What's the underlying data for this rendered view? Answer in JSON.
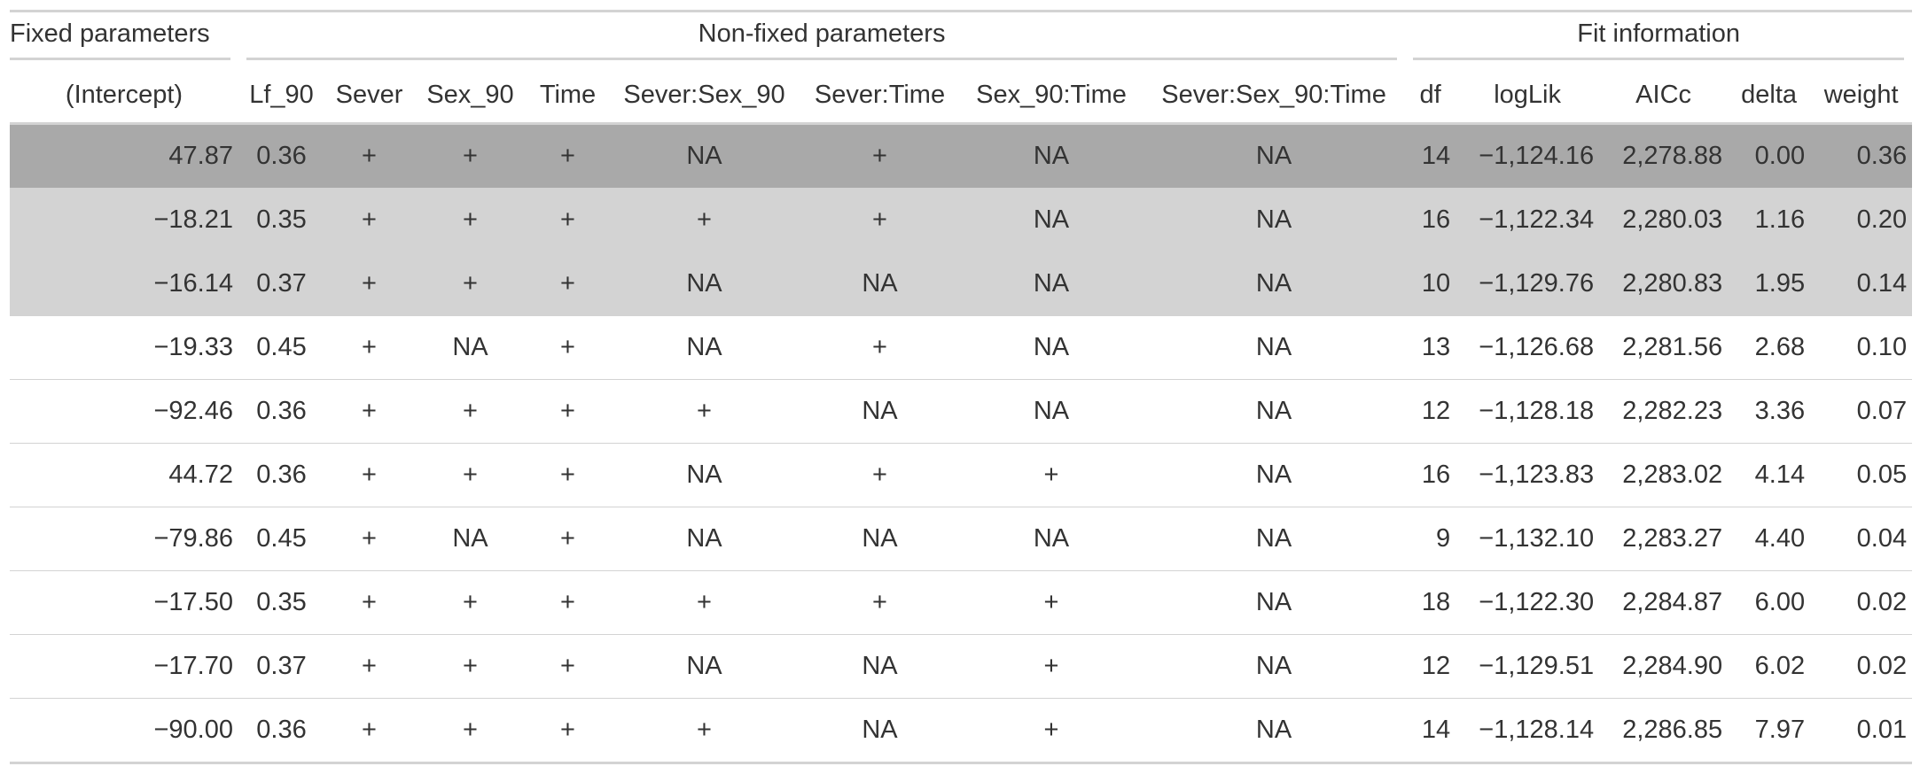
{
  "table": {
    "spanners": [
      {
        "label": "Fixed parameters",
        "columns": [
          "(Intercept)"
        ]
      },
      {
        "label": "Non-fixed parameters",
        "columns": [
          "Lf_90",
          "Sever",
          "Sex_90",
          "Time",
          "Sever:Sex_90",
          "Sever:Time",
          "Sex_90:Time",
          "Sever:Sex_90:Time"
        ]
      },
      {
        "label": "Fit information",
        "columns": [
          "df",
          "logLik",
          "AICc",
          "delta",
          "weight"
        ]
      }
    ],
    "rows": [
      [
        "47.87",
        "0.36",
        "+",
        "+",
        "+",
        "NA",
        "+",
        "NA",
        "NA",
        "14",
        "−1,124.16",
        "2,278.88",
        "0.00",
        "0.36"
      ],
      [
        "−18.21",
        "0.35",
        "+",
        "+",
        "+",
        "+",
        "+",
        "NA",
        "NA",
        "16",
        "−1,122.34",
        "2,280.03",
        "1.16",
        "0.20"
      ],
      [
        "−16.14",
        "0.37",
        "+",
        "+",
        "+",
        "NA",
        "NA",
        "NA",
        "NA",
        "10",
        "−1,129.76",
        "2,280.83",
        "1.95",
        "0.14"
      ],
      [
        "−19.33",
        "0.45",
        "+",
        "NA",
        "+",
        "NA",
        "+",
        "NA",
        "NA",
        "13",
        "−1,126.68",
        "2,281.56",
        "2.68",
        "0.10"
      ],
      [
        "−92.46",
        "0.36",
        "+",
        "+",
        "+",
        "+",
        "NA",
        "NA",
        "NA",
        "12",
        "−1,128.18",
        "2,282.23",
        "3.36",
        "0.07"
      ],
      [
        "44.72",
        "0.36",
        "+",
        "+",
        "+",
        "NA",
        "+",
        "+",
        "NA",
        "16",
        "−1,123.83",
        "2,283.02",
        "4.14",
        "0.05"
      ],
      [
        "−79.86",
        "0.45",
        "+",
        "NA",
        "+",
        "NA",
        "NA",
        "NA",
        "NA",
        "9",
        "−1,132.10",
        "2,283.27",
        "4.40",
        "0.04"
      ],
      [
        "−17.50",
        "0.35",
        "+",
        "+",
        "+",
        "+",
        "+",
        "+",
        "NA",
        "18",
        "−1,122.30",
        "2,284.87",
        "6.00",
        "0.02"
      ],
      [
        "−17.70",
        "0.37",
        "+",
        "+",
        "+",
        "NA",
        "NA",
        "+",
        "NA",
        "12",
        "−1,129.51",
        "2,284.90",
        "6.02",
        "0.02"
      ],
      [
        "−90.00",
        "0.36",
        "+",
        "+",
        "+",
        "+",
        "NA",
        "+",
        "NA",
        "14",
        "−1,128.14",
        "2,286.85",
        "7.97",
        "0.01"
      ]
    ]
  }
}
